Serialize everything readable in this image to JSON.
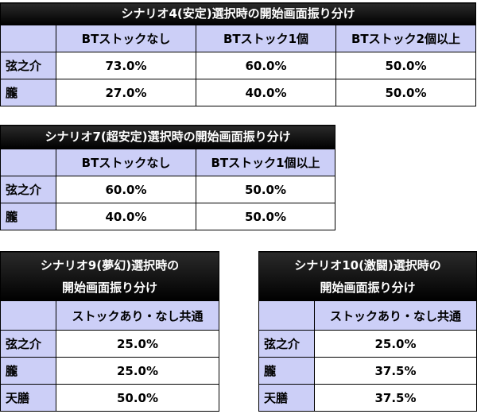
{
  "tables": [
    {
      "title": "シナリオ4(安定)選択時の開始画面振り分け",
      "columns": [
        "BTストックなし",
        "BTストック1個",
        "BTストック2個以上"
      ],
      "rows": [
        {
          "label": "弦之介",
          "values": [
            "73.0%",
            "60.0%",
            "50.0%"
          ]
        },
        {
          "label": "朧",
          "values": [
            "27.0%",
            "40.0%",
            "50.0%"
          ]
        }
      ]
    },
    {
      "title": "シナリオ7(超安定)選択時の開始画面振り分け",
      "columns": [
        "BTストックなし",
        "BTストック1個以上"
      ],
      "rows": [
        {
          "label": "弦之介",
          "values": [
            "60.0%",
            "50.0%"
          ]
        },
        {
          "label": "朧",
          "values": [
            "40.0%",
            "50.0%"
          ]
        }
      ]
    },
    {
      "title_line1": "シナリオ9(夢幻)選択時の",
      "title_line2": "開始画面振り分け",
      "column": "ストックあり・なし共通",
      "rows": [
        {
          "label": "弦之介",
          "value": "25.0%"
        },
        {
          "label": "朧",
          "value": "25.0%"
        },
        {
          "label": "天膳",
          "value": "50.0%"
        }
      ]
    },
    {
      "title_line1": "シナリオ10(激闘)選択時の",
      "title_line2": "開始画面振り分け",
      "column": "ストックあり・なし共通",
      "rows": [
        {
          "label": "弦之介",
          "value": "25.0%"
        },
        {
          "label": "朧",
          "value": "37.5%"
        },
        {
          "label": "天膳",
          "value": "37.5%"
        }
      ]
    }
  ],
  "colors": {
    "title_bg": "#000000",
    "title_text": "#ffffff",
    "header_bg": "#cccff7",
    "cell_bg": "#ffffff",
    "border": "#000000"
  }
}
